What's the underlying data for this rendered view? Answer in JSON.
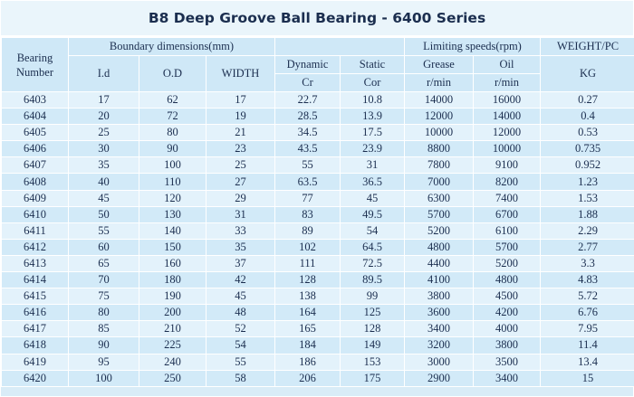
{
  "title": "B8 Deep Groove Ball Bearing - 6400 Series",
  "headers": {
    "bearing_number": "Bearing Number",
    "boundary": "Boundary dimensions(mm)",
    "limiting": "Limiting speeds(rpm)",
    "weight": "WEIGHT/PC",
    "id": "I.d",
    "od": "O.D",
    "width": "WIDTH",
    "dynamic": "Dynamic",
    "static": "Static",
    "grease": "Grease",
    "oil": "Oil",
    "kg": "KG",
    "cr": "Cr",
    "cor": "Cor",
    "grease_unit": "r/min",
    "oil_unit": "r/min"
  },
  "rows": [
    [
      "6403",
      "17",
      "62",
      "17",
      "22.7",
      "10.8",
      "14000",
      "16000",
      "0.27"
    ],
    [
      "6404",
      "20",
      "72",
      "19",
      "28.5",
      "13.9",
      "12000",
      "14000",
      "0.4"
    ],
    [
      "6405",
      "25",
      "80",
      "21",
      "34.5",
      "17.5",
      "10000",
      "12000",
      "0.53"
    ],
    [
      "6406",
      "30",
      "90",
      "23",
      "43.5",
      "23.9",
      "8800",
      "10000",
      "0.735"
    ],
    [
      "6407",
      "35",
      "100",
      "25",
      "55",
      "31",
      "7800",
      "9100",
      "0.952"
    ],
    [
      "6408",
      "40",
      "110",
      "27",
      "63.5",
      "36.5",
      "7000",
      "8200",
      "1.23"
    ],
    [
      "6409",
      "45",
      "120",
      "29",
      "77",
      "45",
      "6300",
      "7400",
      "1.53"
    ],
    [
      "6410",
      "50",
      "130",
      "31",
      "83",
      "49.5",
      "5700",
      "6700",
      "1.88"
    ],
    [
      "6411",
      "55",
      "140",
      "33",
      "89",
      "54",
      "5200",
      "6100",
      "2.29"
    ],
    [
      "6412",
      "60",
      "150",
      "35",
      "102",
      "64.5",
      "4800",
      "5700",
      "2.77"
    ],
    [
      "6413",
      "65",
      "160",
      "37",
      "111",
      "72.5",
      "4400",
      "5200",
      "3.3"
    ],
    [
      "6414",
      "70",
      "180",
      "42",
      "128",
      "89.5",
      "4100",
      "4800",
      "4.83"
    ],
    [
      "6415",
      "75",
      "190",
      "45",
      "138",
      "99",
      "3800",
      "4500",
      "5.72"
    ],
    [
      "6416",
      "80",
      "200",
      "48",
      "164",
      "125",
      "3600",
      "4200",
      "6.76"
    ],
    [
      "6417",
      "85",
      "210",
      "52",
      "165",
      "128",
      "3400",
      "4000",
      "7.95"
    ],
    [
      "6418",
      "90",
      "225",
      "54",
      "184",
      "149",
      "3200",
      "3800",
      "11.4"
    ],
    [
      "6419",
      "95",
      "240",
      "55",
      "186",
      "153",
      "3000",
      "3500",
      "13.4"
    ],
    [
      "6420",
      "100",
      "250",
      "58",
      "206",
      "175",
      "2900",
      "3400",
      "15"
    ]
  ],
  "colors": {
    "background": "#d9ecf7",
    "header": "#cfe8f7",
    "row_light": "#e3f2fb",
    "row_dark": "#d2eaf8",
    "text": "#1b2e4f"
  }
}
